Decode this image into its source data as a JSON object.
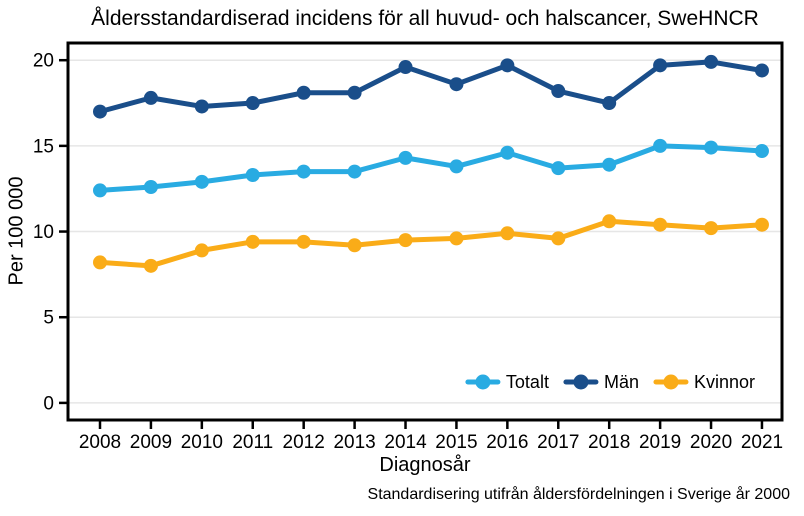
{
  "chart_data": {
    "type": "line",
    "title": "Åldersstandardiserad incidens för all huvud- och halscancer, SweHNCR",
    "caption": "Standardisering utifrån åldersfördelningen i Sverige år 2000",
    "xlabel": "Diagnosår",
    "ylabel": "Per 100 000",
    "x": [
      2008,
      2009,
      2010,
      2011,
      2012,
      2013,
      2014,
      2015,
      2016,
      2017,
      2018,
      2019,
      2020,
      2021
    ],
    "series": [
      {
        "name": "Totalt",
        "color": "#29ABE2",
        "values": [
          12.4,
          12.6,
          12.9,
          13.3,
          13.5,
          13.5,
          14.3,
          13.8,
          14.6,
          13.7,
          13.9,
          15.0,
          14.9,
          14.7
        ]
      },
      {
        "name": "Män",
        "color": "#1A4E8A",
        "values": [
          17.0,
          17.8,
          17.3,
          17.5,
          18.1,
          18.1,
          19.6,
          18.6,
          19.7,
          18.2,
          17.5,
          19.7,
          19.9,
          19.4
        ]
      },
      {
        "name": "Kvinnor",
        "color": "#FAAC18",
        "values": [
          8.2,
          8.0,
          8.9,
          9.4,
          9.4,
          9.2,
          9.5,
          9.6,
          9.9,
          9.6,
          10.6,
          10.4,
          10.2,
          10.4
        ]
      }
    ],
    "ylim": [
      0,
      20
    ],
    "yticks": [
      0,
      5,
      10,
      15,
      20
    ],
    "grid": "horizontal-only",
    "grid_color": "#E6E6E6",
    "axis_color": "#000000",
    "legend_position": "inside-bottom-right",
    "legend_labels": [
      "Totalt",
      "Män",
      "Kvinnor"
    ]
  }
}
